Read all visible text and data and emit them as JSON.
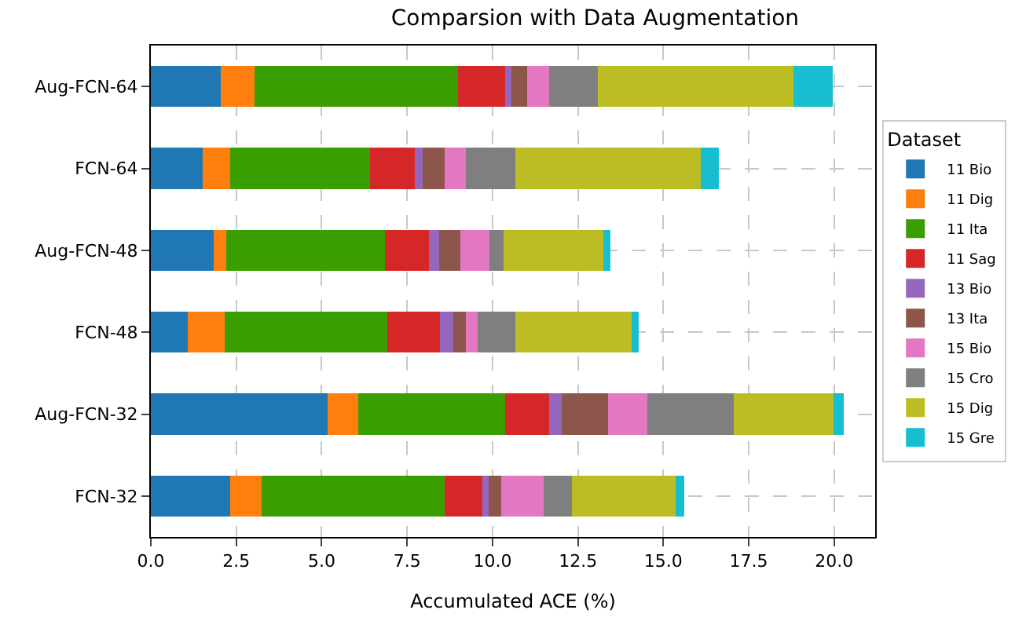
{
  "chart_data": {
    "type": "bar",
    "orientation": "horizontal",
    "stacked": true,
    "title": "Comparsion with Data Augmentation",
    "xlabel": "Accumulated ACE (%)",
    "legend_title": "Dataset",
    "legend": "right",
    "grid": true,
    "categories": [
      "Aug-FCN-64",
      "FCN-64",
      "Aug-FCN-48",
      "FCN-48",
      "Aug-FCN-32",
      "FCN-32"
    ],
    "xlim": [
      0,
      21.2
    ],
    "xticks": [
      {
        "value": 0,
        "label": "0.0"
      },
      {
        "value": 2.5,
        "label": "2.5"
      },
      {
        "value": 5,
        "label": "5.0"
      },
      {
        "value": 7.5,
        "label": "7.5"
      },
      {
        "value": 10,
        "label": "10.0"
      },
      {
        "value": 12.5,
        "label": "12.5"
      },
      {
        "value": 15,
        "label": "15.0"
      },
      {
        "value": 17.5,
        "label": "17.5"
      },
      {
        "value": 20,
        "label": "20.0"
      }
    ],
    "series": [
      {
        "name": "11 Bio",
        "color": "#1f77b4",
        "values": [
          2.05,
          1.52,
          1.83,
          1.09,
          5.18,
          2.32
        ]
      },
      {
        "name": "11 Dig",
        "color": "#ff7f0e",
        "values": [
          0.99,
          0.8,
          0.38,
          1.08,
          0.89,
          0.92
        ]
      },
      {
        "name": "11 Ita",
        "color": "#3a9e00",
        "values": [
          5.94,
          4.09,
          4.64,
          4.76,
          4.3,
          5.37
        ]
      },
      {
        "name": "11 Sag",
        "color": "#d62728",
        "values": [
          1.39,
          1.32,
          1.3,
          1.54,
          1.29,
          1.09
        ]
      },
      {
        "name": "13 Bio",
        "color": "#9467bd",
        "values": [
          0.18,
          0.23,
          0.28,
          0.38,
          0.37,
          0.18
        ]
      },
      {
        "name": "13 Ita",
        "color": "#8c564b",
        "values": [
          0.46,
          0.65,
          0.62,
          0.37,
          1.35,
          0.37
        ]
      },
      {
        "name": "15 Bio",
        "color": "#e377c2",
        "values": [
          0.64,
          0.61,
          0.85,
          0.34,
          1.16,
          1.25
        ]
      },
      {
        "name": "15 Cro",
        "color": "#7f7f7f",
        "values": [
          1.43,
          1.44,
          0.42,
          1.11,
          2.53,
          0.83
        ]
      },
      {
        "name": "15 Dig",
        "color": "#bcbd22",
        "values": [
          5.73,
          5.43,
          2.93,
          3.4,
          2.9,
          3.02
        ]
      },
      {
        "name": "15 Gre",
        "color": "#17becf",
        "values": [
          1.15,
          0.53,
          0.2,
          0.2,
          0.32,
          0.26
        ]
      }
    ]
  }
}
